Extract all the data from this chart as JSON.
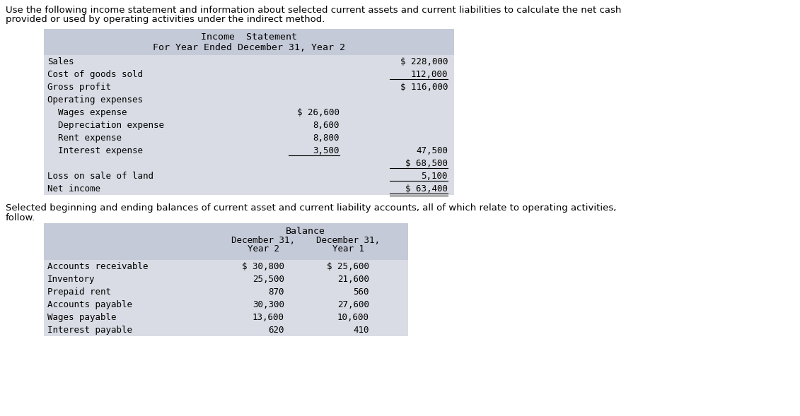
{
  "header_line1": "Use the following income statement and information about selected current assets and current liabilities to calculate the net cash",
  "header_line2": "provided or used by operating activities under the indirect method.",
  "income_statement_title1": "Income  Statement",
  "income_statement_title2": "For Year Ended December 31, Year 2",
  "income_rows": [
    {
      "label": "Sales",
      "col1": "",
      "col2": "$ 228,000",
      "indent": 0,
      "ul_col1": false,
      "ul_col2": false
    },
    {
      "label": "Cost of goods sold",
      "col1": "",
      "col2": "112,000",
      "indent": 0,
      "ul_col1": false,
      "ul_col2": true
    },
    {
      "label": "Gross profit",
      "col1": "",
      "col2": "$ 116,000",
      "indent": 0,
      "ul_col1": false,
      "ul_col2": false
    },
    {
      "label": "Operating expenses",
      "col1": "",
      "col2": "",
      "indent": 0,
      "ul_col1": false,
      "ul_col2": false
    },
    {
      "label": "  Wages expense",
      "col1": "$ 26,600",
      "col2": "",
      "indent": 0,
      "ul_col1": false,
      "ul_col2": false
    },
    {
      "label": "  Depreciation expense",
      "col1": "8,600",
      "col2": "",
      "indent": 0,
      "ul_col1": false,
      "ul_col2": false
    },
    {
      "label": "  Rent expense",
      "col1": "8,800",
      "col2": "",
      "indent": 0,
      "ul_col1": false,
      "ul_col2": false
    },
    {
      "label": "  Interest expense",
      "col1": "3,500",
      "col2": "47,500",
      "indent": 0,
      "ul_col1": true,
      "ul_col2": false
    },
    {
      "label": "",
      "col1": "",
      "col2": "$ 68,500",
      "indent": 0,
      "ul_col1": false,
      "ul_col2": true
    },
    {
      "label": "Loss on sale of land",
      "col1": "",
      "col2": "5,100",
      "indent": 0,
      "ul_col1": false,
      "ul_col2": true
    },
    {
      "label": "Net income",
      "col1": "",
      "col2": "$ 63,400",
      "indent": 0,
      "ul_col1": false,
      "ul_col2": false
    }
  ],
  "balance_title": "Balance",
  "balance_col1_header1": "December 31,",
  "balance_col1_header2": "Year 2",
  "balance_col2_header1": "December 31,",
  "balance_col2_header2": "Year 1",
  "balance_rows": [
    {
      "label": "Accounts receivable",
      "col1": "$ 30,800",
      "col2": "$ 25,600"
    },
    {
      "label": "Inventory",
      "col1": "25,500",
      "col2": "21,600"
    },
    {
      "label": "Prepaid rent",
      "col1": "870",
      "col2": "560"
    },
    {
      "label": "Accounts payable",
      "col1": "30,300",
      "col2": "27,600"
    },
    {
      "label": "Wages payable",
      "col1": "13,600",
      "col2": "10,600"
    },
    {
      "label": "Interest payable",
      "col1": "620",
      "col2": "410"
    }
  ],
  "second_paragraph_line1": "Selected beginning and ending balances of current asset and current liability accounts, all of which relate to operating activities,",
  "second_paragraph_line2": "follow.",
  "table_bg": "#d9dce4",
  "table_header_bg": "#c5cad8",
  "bg_color": "#ffffff"
}
